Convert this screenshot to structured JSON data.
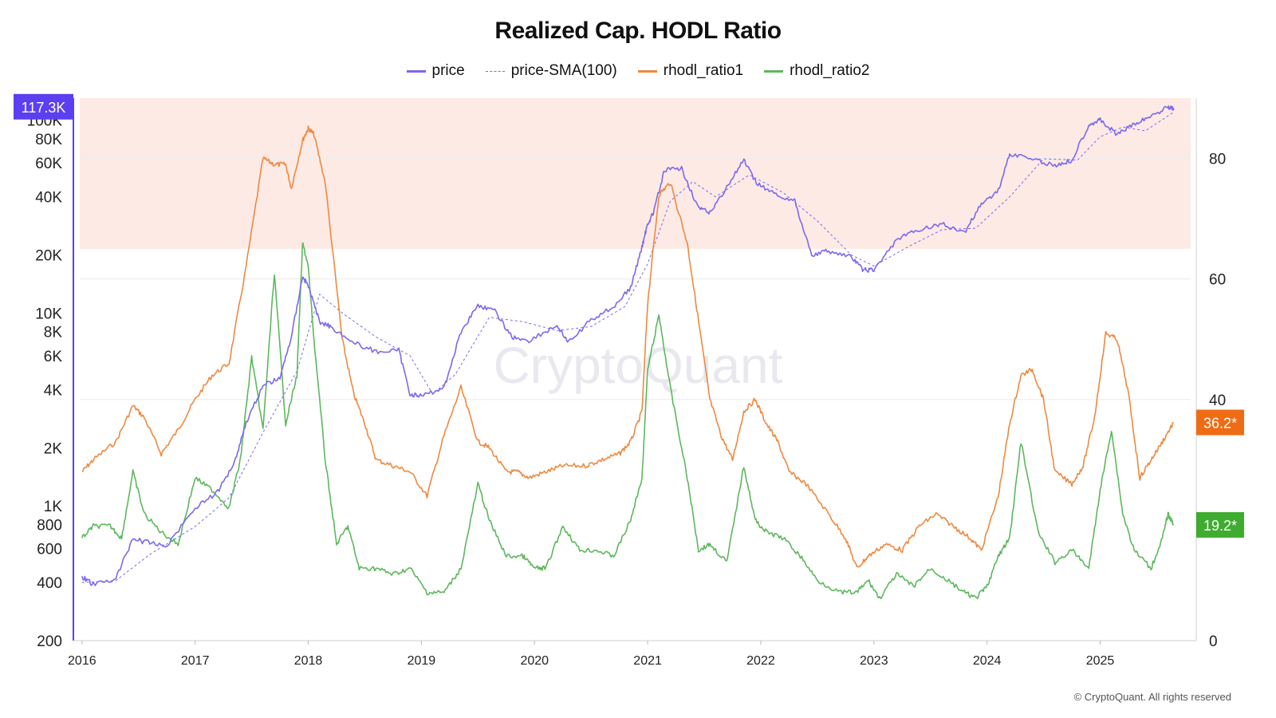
{
  "title": "Realized Cap. HODL Ratio",
  "legend": [
    {
      "label": "price",
      "color": "#7b68ee",
      "style": "solid"
    },
    {
      "label": "price-SMA(100)",
      "color": "#7b68ee",
      "style": "dashed"
    },
    {
      "label": "rhodl_ratio1",
      "color": "#f0883e",
      "style": "solid"
    },
    {
      "label": "rhodl_ratio2",
      "color": "#5cb85c",
      "style": "solid"
    }
  ],
  "copyright": "© CryptoQuant. All rights reserved",
  "watermark": "CryptoQuant",
  "badges": {
    "price": {
      "label": "117.3K",
      "color": "#5b3ff0"
    },
    "ratio1": {
      "label": "36.2*",
      "color": "#ef6c14"
    },
    "ratio2": {
      "label": "19.2*",
      "color": "#3eac2e"
    }
  },
  "chart_data": {
    "type": "line",
    "x_range": [
      2015.98,
      2025.8
    ],
    "x_ticks": [
      "2016",
      "2017",
      "2018",
      "2019",
      "2020",
      "2021",
      "2022",
      "2023",
      "2024",
      "2025"
    ],
    "y_left": {
      "scale": "log",
      "range": [
        200,
        130000
      ],
      "ticks": [
        "200",
        "400",
        "600",
        "800",
        "1K",
        "2K",
        "4K",
        "6K",
        "8K",
        "10K",
        "20K",
        "40K",
        "60K",
        "80K",
        "100K"
      ],
      "tick_values": [
        200,
        400,
        600,
        800,
        1000,
        2000,
        4000,
        6000,
        8000,
        10000,
        20000,
        40000,
        60000,
        80000,
        100000
      ]
    },
    "y_right": {
      "scale": "linear",
      "range": [
        0,
        90
      ],
      "ticks": [
        "0",
        "40",
        "60",
        "80"
      ],
      "tick_values": [
        0,
        40,
        60,
        80
      ]
    },
    "highlight_band": {
      "axis": "y_right",
      "from": 65,
      "to": 90,
      "color": "#fdeae5"
    },
    "series": [
      {
        "name": "price",
        "axis": "y_left",
        "color": "#7b68ee",
        "x": [
          2016.0,
          2016.1,
          2016.3,
          2016.45,
          2016.55,
          2016.75,
          2017.0,
          2017.2,
          2017.35,
          2017.45,
          2017.6,
          2017.75,
          2017.85,
          2017.95,
          2018.0,
          2018.1,
          2018.2,
          2018.4,
          2018.6,
          2018.8,
          2018.9,
          2019.0,
          2019.2,
          2019.35,
          2019.5,
          2019.65,
          2019.8,
          2019.95,
          2020.2,
          2020.3,
          2020.5,
          2020.7,
          2020.85,
          2020.95,
          2021.0,
          2021.05,
          2021.15,
          2021.3,
          2021.45,
          2021.55,
          2021.7,
          2021.85,
          2021.95,
          2022.1,
          2022.3,
          2022.45,
          2022.6,
          2022.8,
          2022.9,
          2023.0,
          2023.2,
          2023.4,
          2023.6,
          2023.8,
          2023.95,
          2024.1,
          2024.2,
          2024.4,
          2024.6,
          2024.75,
          2024.9,
          2025.0,
          2025.15,
          2025.3,
          2025.45,
          2025.6,
          2025.65
        ],
        "y": [
          430,
          390,
          420,
          680,
          650,
          620,
          980,
          1180,
          1700,
          2700,
          4200,
          4600,
          7500,
          15500,
          13800,
          9000,
          8500,
          7000,
          6300,
          6400,
          3800,
          3700,
          4100,
          8000,
          11000,
          10200,
          7500,
          7200,
          8600,
          7000,
          9200,
          10800,
          13500,
          22000,
          29000,
          33000,
          55000,
          56000,
          35000,
          33000,
          45000,
          62000,
          48000,
          42000,
          38000,
          20000,
          21000,
          19500,
          16800,
          16600,
          24000,
          27000,
          29000,
          26000,
          37000,
          43000,
          67000,
          63000,
          58000,
          62000,
          95000,
          100000,
          84000,
          95000,
          105000,
          117300,
          115000
        ]
      },
      {
        "name": "price-SMA(100)",
        "axis": "y_left",
        "color": "#7b68ee",
        "x": [
          2016.0,
          2016.3,
          2016.6,
          2017.0,
          2017.3,
          2017.6,
          2017.9,
          2018.1,
          2018.3,
          2018.6,
          2018.9,
          2019.1,
          2019.3,
          2019.6,
          2019.9,
          2020.2,
          2020.5,
          2020.8,
          2021.0,
          2021.2,
          2021.4,
          2021.6,
          2021.9,
          2022.2,
          2022.5,
          2022.8,
          2023.0,
          2023.3,
          2023.6,
          2023.9,
          2024.2,
          2024.5,
          2024.8,
          2025.0,
          2025.2,
          2025.4,
          2025.65
        ],
        "y": [
          400,
          410,
          560,
          780,
          1100,
          2400,
          5000,
          12500,
          10000,
          7500,
          6000,
          3800,
          4800,
          9500,
          9000,
          8100,
          8500,
          10800,
          18000,
          38000,
          48000,
          40000,
          52000,
          42000,
          30000,
          20000,
          17500,
          22000,
          27000,
          27500,
          40000,
          63000,
          62000,
          82000,
          92000,
          88000,
          110000
        ]
      },
      {
        "name": "rhodl_ratio1",
        "axis": "y_right",
        "color": "#f0883e",
        "x": [
          2016.0,
          2016.1,
          2016.3,
          2016.45,
          2016.55,
          2016.7,
          2016.85,
          2017.0,
          2017.15,
          2017.3,
          2017.45,
          2017.6,
          2017.7,
          2017.8,
          2017.85,
          2017.95,
          2018.0,
          2018.05,
          2018.15,
          2018.3,
          2018.4,
          2018.5,
          2018.6,
          2018.75,
          2018.9,
          2019.05,
          2019.2,
          2019.35,
          2019.5,
          2019.6,
          2019.75,
          2019.85,
          2019.95,
          2020.1,
          2020.25,
          2020.45,
          2020.6,
          2020.75,
          2020.85,
          2020.95,
          2021.0,
          2021.1,
          2021.2,
          2021.35,
          2021.45,
          2021.55,
          2021.65,
          2021.75,
          2021.85,
          2021.95,
          2022.05,
          2022.15,
          2022.25,
          2022.4,
          2022.6,
          2022.75,
          2022.85,
          2022.95,
          2023.1,
          2023.25,
          2023.4,
          2023.55,
          2023.7,
          2023.85,
          2023.95,
          2024.1,
          2024.2,
          2024.3,
          2024.4,
          2024.5,
          2024.6,
          2024.75,
          2024.85,
          2024.95,
          2025.05,
          2025.15,
          2025.25,
          2025.35,
          2025.45,
          2025.55,
          2025.65
        ],
        "y": [
          28,
          30,
          33,
          39,
          37,
          31,
          35,
          40,
          44,
          46,
          62,
          80,
          79,
          79,
          75,
          83,
          85,
          84,
          76,
          50,
          41,
          36,
          30,
          29,
          28,
          24,
          34,
          42,
          33,
          32,
          28,
          28,
          27,
          28,
          29,
          29,
          30,
          31,
          33,
          38,
          56,
          74,
          76,
          66,
          53,
          40,
          34,
          30,
          38,
          40,
          36,
          33,
          28,
          26,
          21,
          17,
          12,
          14,
          16,
          15,
          19,
          21,
          19,
          17,
          15,
          24,
          36,
          44,
          45,
          40,
          28,
          26,
          29,
          37,
          51,
          50,
          41,
          27,
          30,
          33,
          36.2
        ]
      },
      {
        "name": "rhodl_ratio2",
        "axis": "y_right",
        "color": "#5cb85c",
        "x": [
          2016.0,
          2016.1,
          2016.25,
          2016.35,
          2016.45,
          2016.55,
          2016.7,
          2016.85,
          2017.0,
          2017.15,
          2017.3,
          2017.4,
          2017.5,
          2017.6,
          2017.7,
          2017.8,
          2017.9,
          2017.95,
          2018.0,
          2018.05,
          2018.15,
          2018.25,
          2018.35,
          2018.45,
          2018.6,
          2018.75,
          2018.9,
          2019.05,
          2019.2,
          2019.35,
          2019.5,
          2019.6,
          2019.75,
          2019.9,
          2020.0,
          2020.1,
          2020.25,
          2020.4,
          2020.55,
          2020.7,
          2020.85,
          2020.95,
          2021.0,
          2021.1,
          2021.2,
          2021.35,
          2021.45,
          2021.55,
          2021.7,
          2021.85,
          2021.95,
          2022.05,
          2022.2,
          2022.35,
          2022.5,
          2022.7,
          2022.85,
          2022.95,
          2023.05,
          2023.2,
          2023.35,
          2023.5,
          2023.65,
          2023.8,
          2023.9,
          2024.0,
          2024.1,
          2024.2,
          2024.3,
          2024.45,
          2024.6,
          2024.75,
          2024.9,
          2025.0,
          2025.1,
          2025.2,
          2025.3,
          2025.45,
          2025.55,
          2025.6,
          2025.65
        ],
        "y": [
          17,
          19,
          19,
          17,
          28,
          21,
          18,
          16,
          27,
          25,
          22,
          30,
          47,
          35,
          61,
          36,
          44,
          66,
          62,
          50,
          30,
          16,
          19,
          12,
          12,
          11,
          12,
          8,
          8,
          12,
          26,
          20,
          14,
          14,
          12,
          12,
          19,
          15,
          15,
          14,
          20,
          27,
          45,
          54,
          42,
          27,
          15,
          16,
          13,
          29,
          20,
          18,
          17,
          14,
          10,
          8,
          8,
          10,
          7,
          11,
          9,
          12,
          10,
          8,
          7,
          9,
          14,
          17,
          33,
          18,
          13,
          15,
          12,
          25,
          35,
          21,
          15,
          12,
          17,
          21,
          19.2
        ]
      }
    ]
  }
}
